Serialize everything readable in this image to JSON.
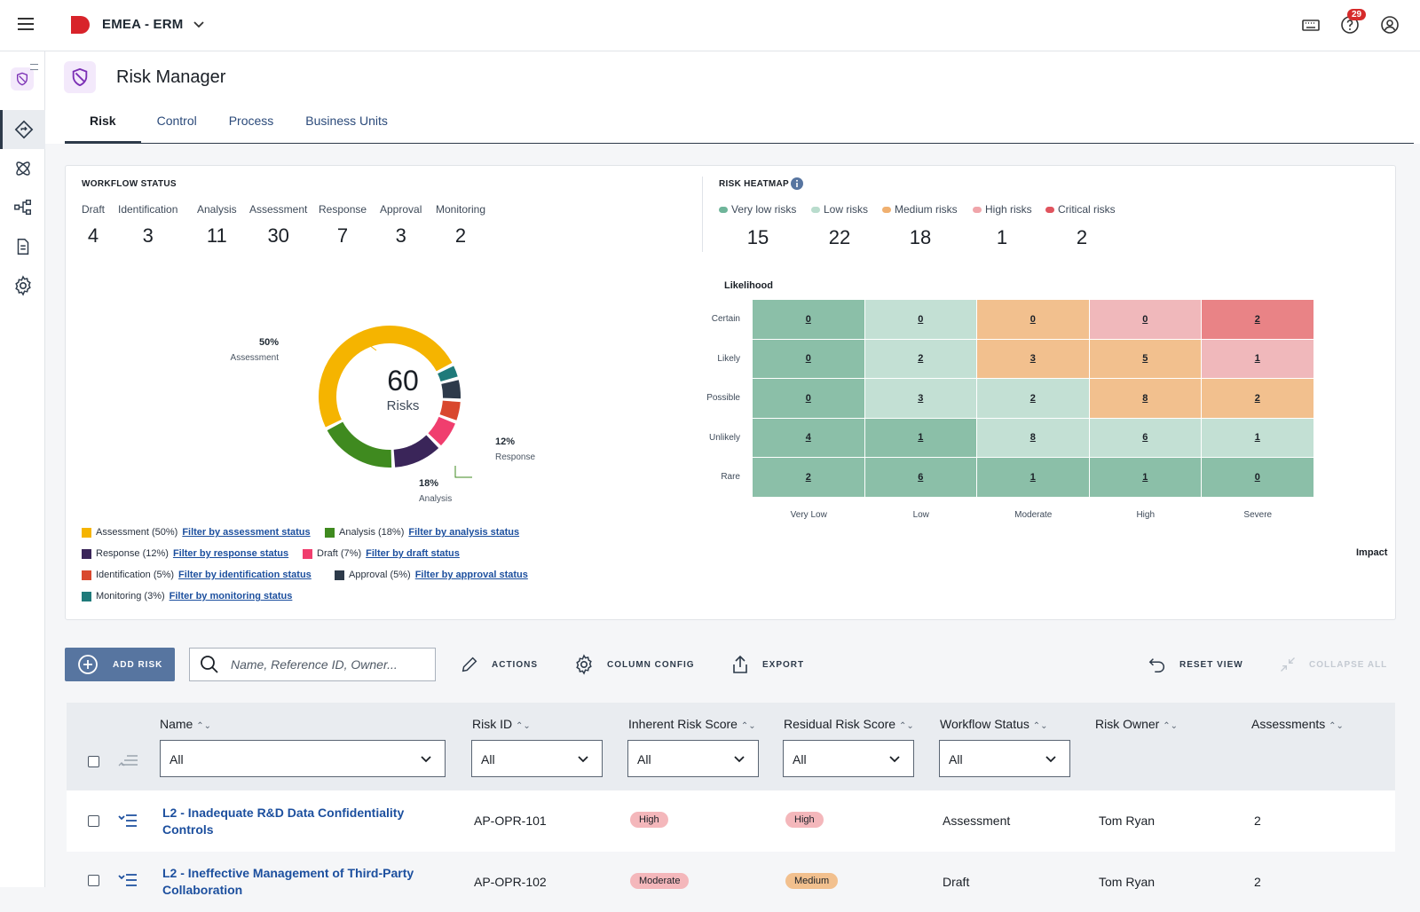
{
  "app": {
    "title": "EMEA - ERM",
    "notifications": "29"
  },
  "page": {
    "title": "Risk Manager"
  },
  "tabs": [
    {
      "label": "Risk"
    },
    {
      "label": "Control"
    },
    {
      "label": "Process"
    },
    {
      "label": "Business Units"
    }
  ],
  "workflow": {
    "title": "WORKFLOW STATUS",
    "statuses": [
      {
        "label": "Draft",
        "count": "4"
      },
      {
        "label": "Identification",
        "count": "3"
      },
      {
        "label": "Analysis",
        "count": "11"
      },
      {
        "label": "Assessment",
        "count": "30"
      },
      {
        "label": "Response",
        "count": "7"
      },
      {
        "label": "Approval",
        "count": "3"
      },
      {
        "label": "Monitoring",
        "count": "2"
      }
    ],
    "donut": {
      "total": "60",
      "unit": "Risks",
      "callouts": [
        {
          "pct": "50%",
          "label": "Assessment"
        },
        {
          "pct": "12%",
          "label": "Response"
        },
        {
          "pct": "18%",
          "label": "Analysis"
        }
      ],
      "segments": [
        {
          "name": "Assessment",
          "value": 30,
          "color": "#f5b400"
        },
        {
          "name": "Monitoring",
          "value": 2,
          "color": "#1f7a7a"
        },
        {
          "name": "Approval",
          "value": 3,
          "color": "#2d3a4a"
        },
        {
          "name": "Identification",
          "value": 3,
          "color": "#d9482e"
        },
        {
          "name": "Draft",
          "value": 4,
          "color": "#f03e6e"
        },
        {
          "name": "Response",
          "value": 7,
          "color": "#3a2559"
        },
        {
          "name": "Analysis",
          "value": 11,
          "color": "#3f8a1f"
        }
      ]
    },
    "legend": [
      {
        "label": "Assessment (50%)",
        "link": "Filter by assessment status",
        "color": "#f5b400"
      },
      {
        "label": "Analysis (18%)",
        "link": "Filter by analysis status",
        "color": "#3f8a1f"
      },
      {
        "label": "Response (12%)",
        "link": "Filter by response status",
        "color": "#3a2559"
      },
      {
        "label": "Draft (7%)",
        "link": "Filter by draft status",
        "color": "#f03e6e"
      },
      {
        "label": "Identification (5%)",
        "link": "Filter by identification status",
        "color": "#d9482e"
      },
      {
        "label": "Approval (5%)",
        "link": "Filter by approval status",
        "color": "#2d3a4a"
      },
      {
        "label": "Monitoring (3%)",
        "link": "Filter by monitoring status",
        "color": "#1f7a7a"
      }
    ]
  },
  "heatmap": {
    "title": "RISK HEATMAP",
    "legend": [
      {
        "label": "Very low risks",
        "count": "15",
        "color": "#6fb59a"
      },
      {
        "label": "Low risks",
        "count": "22",
        "color": "#b9dccd"
      },
      {
        "label": "Medium risks",
        "count": "18",
        "color": "#f0b070"
      },
      {
        "label": "High risks",
        "count": "1",
        "color": "#f0a5aa"
      },
      {
        "label": "Critical risks",
        "count": "2",
        "color": "#e0545e"
      }
    ],
    "y_title": "Likelihood",
    "x_title": "Impact",
    "rows": [
      "Certain",
      "Likely",
      "Possible",
      "Unlikely",
      "Rare"
    ],
    "cols": [
      "Very Low",
      "Low",
      "Moderate",
      "High",
      "Severe"
    ],
    "cells": [
      [
        "0",
        "0",
        "0",
        "0",
        "2"
      ],
      [
        "0",
        "2",
        "3",
        "5",
        "1"
      ],
      [
        "0",
        "3",
        "2",
        "8",
        "2"
      ],
      [
        "4",
        "1",
        "8",
        "6",
        "1"
      ],
      [
        "2",
        "6",
        "1",
        "1",
        "0"
      ]
    ],
    "colors": [
      [
        "#8bbfa8",
        "#c3e0d4",
        "#f2c08e",
        "#f0b8bb",
        "#e98386"
      ],
      [
        "#8bbfa8",
        "#c3e0d4",
        "#f2c08e",
        "#f2c08e",
        "#f0b8bb"
      ],
      [
        "#8bbfa8",
        "#c3e0d4",
        "#c3e0d4",
        "#f2c08e",
        "#f2c08e"
      ],
      [
        "#8bbfa8",
        "#8bbfa8",
        "#c3e0d4",
        "#c3e0d4",
        "#c3e0d4"
      ],
      [
        "#8bbfa8",
        "#8bbfa8",
        "#8bbfa8",
        "#8bbfa8",
        "#8bbfa8"
      ]
    ]
  },
  "toolbar": {
    "add": "ADD RISK",
    "search_placeholder": "Name, Reference ID, Owner...",
    "actions": "ACTIONS",
    "column_config": "COLUMN CONFIG",
    "export": "EXPORT",
    "reset": "RESET VIEW",
    "collapse": "COLLAPSE ALL"
  },
  "table": {
    "columns": [
      "Name",
      "Risk ID",
      "Inherent Risk Score",
      "Residual Risk Score",
      "Workflow Status",
      "Risk Owner",
      "Assessments"
    ],
    "filter_value": "All",
    "rows": [
      {
        "name": "L2 - Inadequate R&D Data Confidentiality Controls",
        "id": "AP-OPR-101",
        "inherent": "High",
        "residual": "High",
        "status": "Assessment",
        "owner": "Tom Ryan",
        "assessments": "2"
      },
      {
        "name": "L2 - Ineffective Management of Third-Party Collaboration",
        "id": "AP-OPR-102",
        "inherent": "Moderate",
        "residual": "Medium",
        "status": "Draft",
        "owner": "Tom Ryan",
        "assessments": "2"
      }
    ]
  }
}
